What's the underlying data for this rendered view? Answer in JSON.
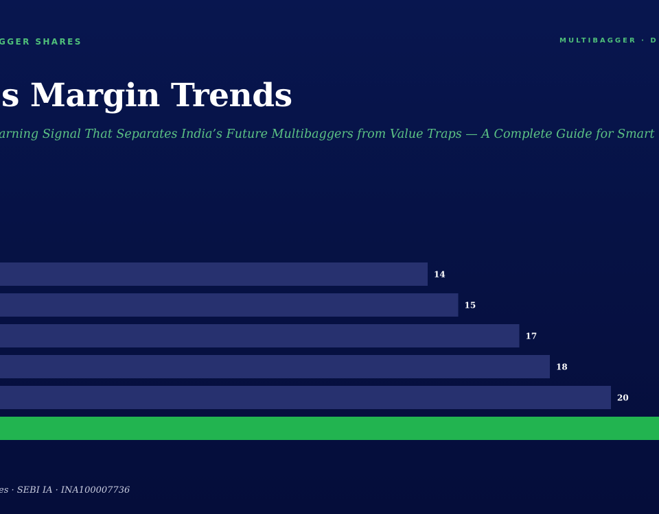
{
  "header": {
    "brand_left": "GGER SHARES",
    "brand_right": "MULTIBAGGER · D"
  },
  "title": "s Margin Trends",
  "subtitle": "arning Signal That Separates India’s Future Multibaggers from Value Traps — A Complete Guide for Smart",
  "footer": "es · SEBI IA · INA100007736",
  "colors": {
    "bar": "#27316f",
    "highlight_bar": "#22b450",
    "value_label": "#ffffff",
    "accent": "#4fbf7a"
  },
  "chart_data": {
    "type": "bar",
    "orientation": "horizontal",
    "values": [
      14,
      15,
      17,
      18,
      20,
      22
    ],
    "value_labels": [
      "14",
      "15",
      "17",
      "18",
      "20",
      ""
    ],
    "highlight_index": 5,
    "xlim": [
      0,
      28
    ],
    "grid": false,
    "legend": "none"
  }
}
